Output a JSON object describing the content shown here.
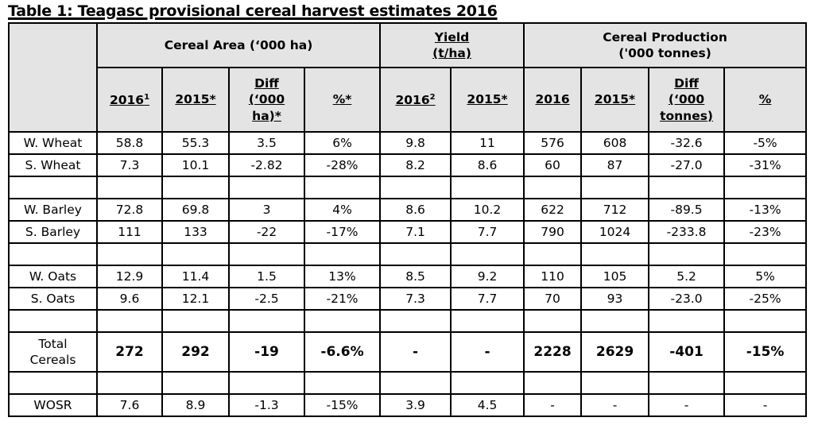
{
  "title": "Table 1: Teagasc provisional cereal harvest estimates 2016",
  "groups": {
    "area": "Cereal Area (‘000 ha)",
    "yield_l1": "Yield",
    "yield_l2": "(t/ha)",
    "prod_l1": "Cereal Production",
    "prod_l2": "('000 tonnes)"
  },
  "columns": {
    "a2016": "2016",
    "a2016_sup": "1",
    "a2015": "2015*",
    "adiff_l1": "Diff",
    "adiff_l2": "(‘000",
    "adiff_l3": "ha)*",
    "apct": "%*",
    "y2016": "2016",
    "y2016_sup": "2",
    "y2015": "2015*",
    "p2016": "2016",
    "p2015": "2015*",
    "pdiff_l1": "Diff",
    "pdiff_l2": "(‘000",
    "pdiff_l3": "tonnes)",
    "ppct": "%"
  },
  "rows": [
    {
      "label": "W. Wheat",
      "v": [
        "58.8",
        "55.3",
        "3.5",
        "6%",
        "9.8",
        "11",
        "576",
        "608",
        "-32.6",
        "-5%"
      ]
    },
    {
      "label": "S. Wheat",
      "v": [
        "7.3",
        "10.1",
        "-2.82",
        "-28%",
        "8.2",
        "8.6",
        "60",
        "87",
        "-27.0",
        "-31%"
      ]
    },
    {
      "label": "W. Barley",
      "v": [
        "72.8",
        "69.8",
        "3",
        "4%",
        "8.6",
        "10.2",
        "622",
        "712",
        "-89.5",
        "-13%"
      ]
    },
    {
      "label": "S. Barley",
      "v": [
        "111",
        "133",
        "-22",
        "-17%",
        "7.1",
        "7.7",
        "790",
        "1024",
        "-233.8",
        "-23%"
      ]
    },
    {
      "label": "W. Oats",
      "v": [
        "12.9",
        "11.4",
        "1.5",
        "13%",
        "8.5",
        "9.2",
        "110",
        "105",
        "5.2",
        "5%"
      ]
    },
    {
      "label": "S. Oats",
      "v": [
        "9.6",
        "12.1",
        "-2.5",
        "-21%",
        "7.3",
        "7.7",
        "70",
        "93",
        "-23.0",
        "-25%"
      ]
    },
    {
      "label_l1": "Total",
      "label_l2": "Cereals",
      "v": [
        "272",
        "292",
        "-19",
        "-6.6%",
        "-",
        "-",
        "2228",
        "2629",
        "-401",
        "-15%"
      ]
    },
    {
      "label": "WOSR",
      "v": [
        "7.6",
        "8.9",
        "-1.3",
        "-15%",
        "3.9",
        "4.5",
        "-",
        "-",
        "-",
        "-"
      ]
    }
  ]
}
